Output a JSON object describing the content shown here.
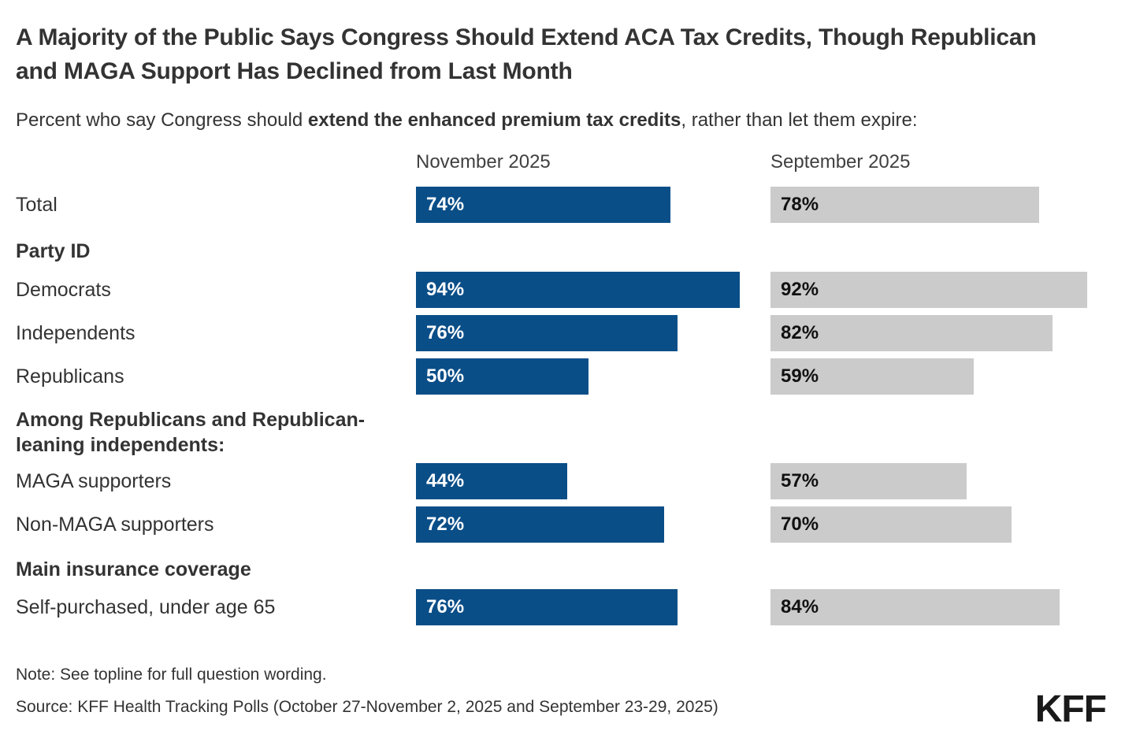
{
  "title": "A Majority of the Public Says Congress Should Extend ACA Tax Credits, Though Republican and MAGA Support Has Declined from Last Month",
  "subtitle": {
    "prefix": "Percent who say Congress should ",
    "bold": "extend the enhanced premium tax credits",
    "suffix": ", rather than let them expire:"
  },
  "columns": {
    "november": {
      "label": "November 2025",
      "color": "#0a4e88"
    },
    "september": {
      "label": "September 2025",
      "color": "#cbcbcb"
    }
  },
  "rows": [
    {
      "type": "bar",
      "label": "Total",
      "nov": {
        "value": 74,
        "display": "74%"
      },
      "sept": {
        "value": 78,
        "display": "78%"
      }
    },
    {
      "type": "section",
      "label": "Party ID"
    },
    {
      "type": "bar",
      "label": "Democrats",
      "nov": {
        "value": 94,
        "display": "94%"
      },
      "sept": {
        "value": 92,
        "display": "92%"
      }
    },
    {
      "type": "bar",
      "label": "Independents",
      "nov": {
        "value": 76,
        "display": "76%"
      },
      "sept": {
        "value": 82,
        "display": "82%"
      }
    },
    {
      "type": "bar",
      "label": "Republicans",
      "nov": {
        "value": 50,
        "display": "50%"
      },
      "sept": {
        "value": 59,
        "display": "59%"
      }
    },
    {
      "type": "section",
      "label": "Among Republicans and Republican-leaning independents:"
    },
    {
      "type": "bar",
      "label": "MAGA supporters",
      "nov": {
        "value": 44,
        "display": "44%"
      },
      "sept": {
        "value": 57,
        "display": "57%"
      }
    },
    {
      "type": "bar",
      "label": "Non-MAGA supporters",
      "nov": {
        "value": 72,
        "display": "72%"
      },
      "sept": {
        "value": 70,
        "display": "70%"
      }
    },
    {
      "type": "section",
      "label": "Main insurance coverage"
    },
    {
      "type": "bar",
      "label": "Self-purchased, under age 65",
      "nov": {
        "value": 76,
        "display": "76%"
      },
      "sept": {
        "value": 84,
        "display": "84%"
      }
    }
  ],
  "note": "Note: See topline for full question wording.",
  "source": "Source: KFF Health Tracking Polls (October 27-November 2, 2025 and September 23-29, 2025)",
  "logo": "KFF",
  "chart_data": {
    "type": "bar",
    "orientation": "horizontal",
    "title": "A Majority of the Public Says Congress Should Extend ACA Tax Credits, Though Republican and MAGA Support Has Declined from Last Month",
    "subtitle": "Percent who say Congress should extend the enhanced premium tax credits, rather than let them expire:",
    "categories": [
      "Total",
      "Democrats",
      "Independents",
      "Republicans",
      "MAGA supporters",
      "Non-MAGA supporters",
      "Self-purchased, under age 65"
    ],
    "category_groups": [
      "",
      "Party ID",
      "Party ID",
      "Party ID",
      "Among Republicans and Republican-leaning independents:",
      "Among Republicans and Republican-leaning independents:",
      "Main insurance coverage"
    ],
    "series": [
      {
        "name": "November 2025",
        "color": "#0a4e88",
        "values": [
          74,
          94,
          76,
          50,
          44,
          72,
          76
        ]
      },
      {
        "name": "September 2025",
        "color": "#cbcbcb",
        "values": [
          78,
          92,
          82,
          59,
          57,
          70,
          84
        ]
      }
    ],
    "xlim": [
      0,
      100
    ],
    "value_labels": true,
    "grid": false,
    "legend_position": "column-headers-top"
  }
}
